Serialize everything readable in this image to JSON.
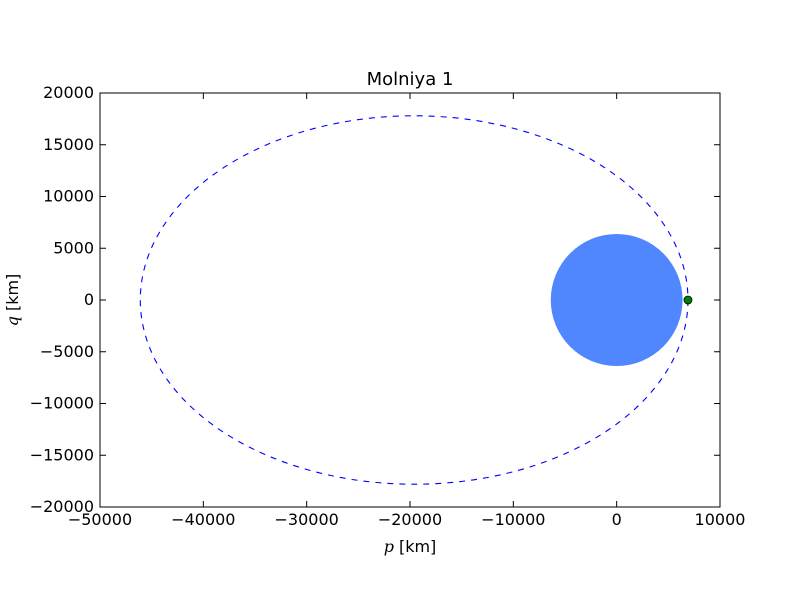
{
  "chart_data": {
    "type": "scatter",
    "title": "Molniya 1",
    "xlabel_symbol": "p",
    "xlabel_unit": "[km]",
    "ylabel_symbol": "q",
    "ylabel_unit": "[km]",
    "xlim": [
      -50000,
      10000
    ],
    "ylim": [
      -20000,
      20000
    ],
    "xticks": [
      -50000,
      -40000,
      -30000,
      -20000,
      -10000,
      0,
      10000
    ],
    "yticks": [
      -20000,
      -15000,
      -10000,
      -5000,
      0,
      5000,
      10000,
      15000,
      20000
    ],
    "xtick_labels": [
      "−50000",
      "−40000",
      "−30000",
      "−20000",
      "−10000",
      "0",
      "10000"
    ],
    "ytick_labels": [
      "−20000",
      "−15000",
      "−10000",
      "−5000",
      "0",
      "5000",
      "10000",
      "15000",
      "20000"
    ],
    "grid": false,
    "legend": "none",
    "earth": {
      "center": [
        0,
        0
      ],
      "radius": 6378,
      "color": "#5087ff"
    },
    "orbit": {
      "style": "dashed",
      "color": "#0000ff",
      "center": [
        -19600,
        0
      ],
      "semi_major_axis": 26500,
      "semi_minor_axis": 17800,
      "perigee": [
        6900,
        0
      ],
      "apogee": [
        -46100,
        0
      ]
    },
    "satellite": {
      "position": [
        6900,
        0
      ],
      "color": "#008000"
    }
  }
}
